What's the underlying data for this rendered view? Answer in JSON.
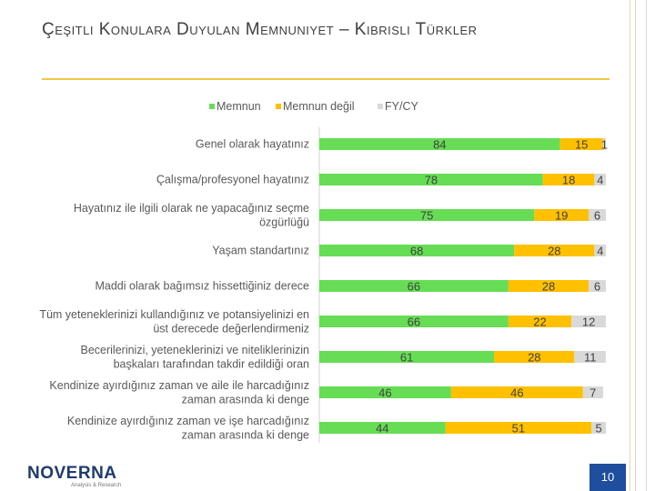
{
  "slide": {
    "title": "Çeşitli Konulara Duyulan Memnuniyet – Kıbrıslı Türkler",
    "page_number": "10",
    "logo_text": "NOVERNA",
    "logo_sub": "Analysis & Research"
  },
  "chart_data": {
    "type": "bar",
    "orientation": "horizontal",
    "stacked": true,
    "title": "",
    "legend_position": "top",
    "categories": [
      "Genel olarak hayatınız",
      "Çalışma/profesyonel hayatınız",
      "Hayatınız ile ilgili olarak ne yapacağınız seçme özgürlüğü",
      "Yaşam standartınız",
      "Maddi olarak bağımsız hissettiğiniz derece",
      "Tüm yeteneklerinizi kullandığınız ve potansiyelinizi en üst derecede değerlendirmeniz",
      "Becerilerinizi, yeteneklerinizi ve niteliklerinizin başkaları tarafından takdir edildiği oran",
      "Kendinize ayırdığınız zaman ve aile ile harcadığınız zaman arasında ki denge",
      "Kendinize ayırdığınız zaman ve işe harcadığınız zaman arasında ki denge"
    ],
    "series": [
      {
        "name": "Memnun",
        "color": "#66dd55",
        "values": [
          84,
          78,
          75,
          68,
          66,
          66,
          61,
          46,
          44
        ]
      },
      {
        "name": "Memnun değil",
        "color": "#ffc000",
        "values": [
          15,
          18,
          19,
          28,
          28,
          22,
          28,
          46,
          51
        ]
      },
      {
        "name": "FY/CY",
        "color": "#d9d9d9",
        "values": [
          1,
          4,
          6,
          4,
          6,
          12,
          11,
          7,
          5
        ]
      }
    ],
    "xlim": [
      0,
      100
    ]
  }
}
